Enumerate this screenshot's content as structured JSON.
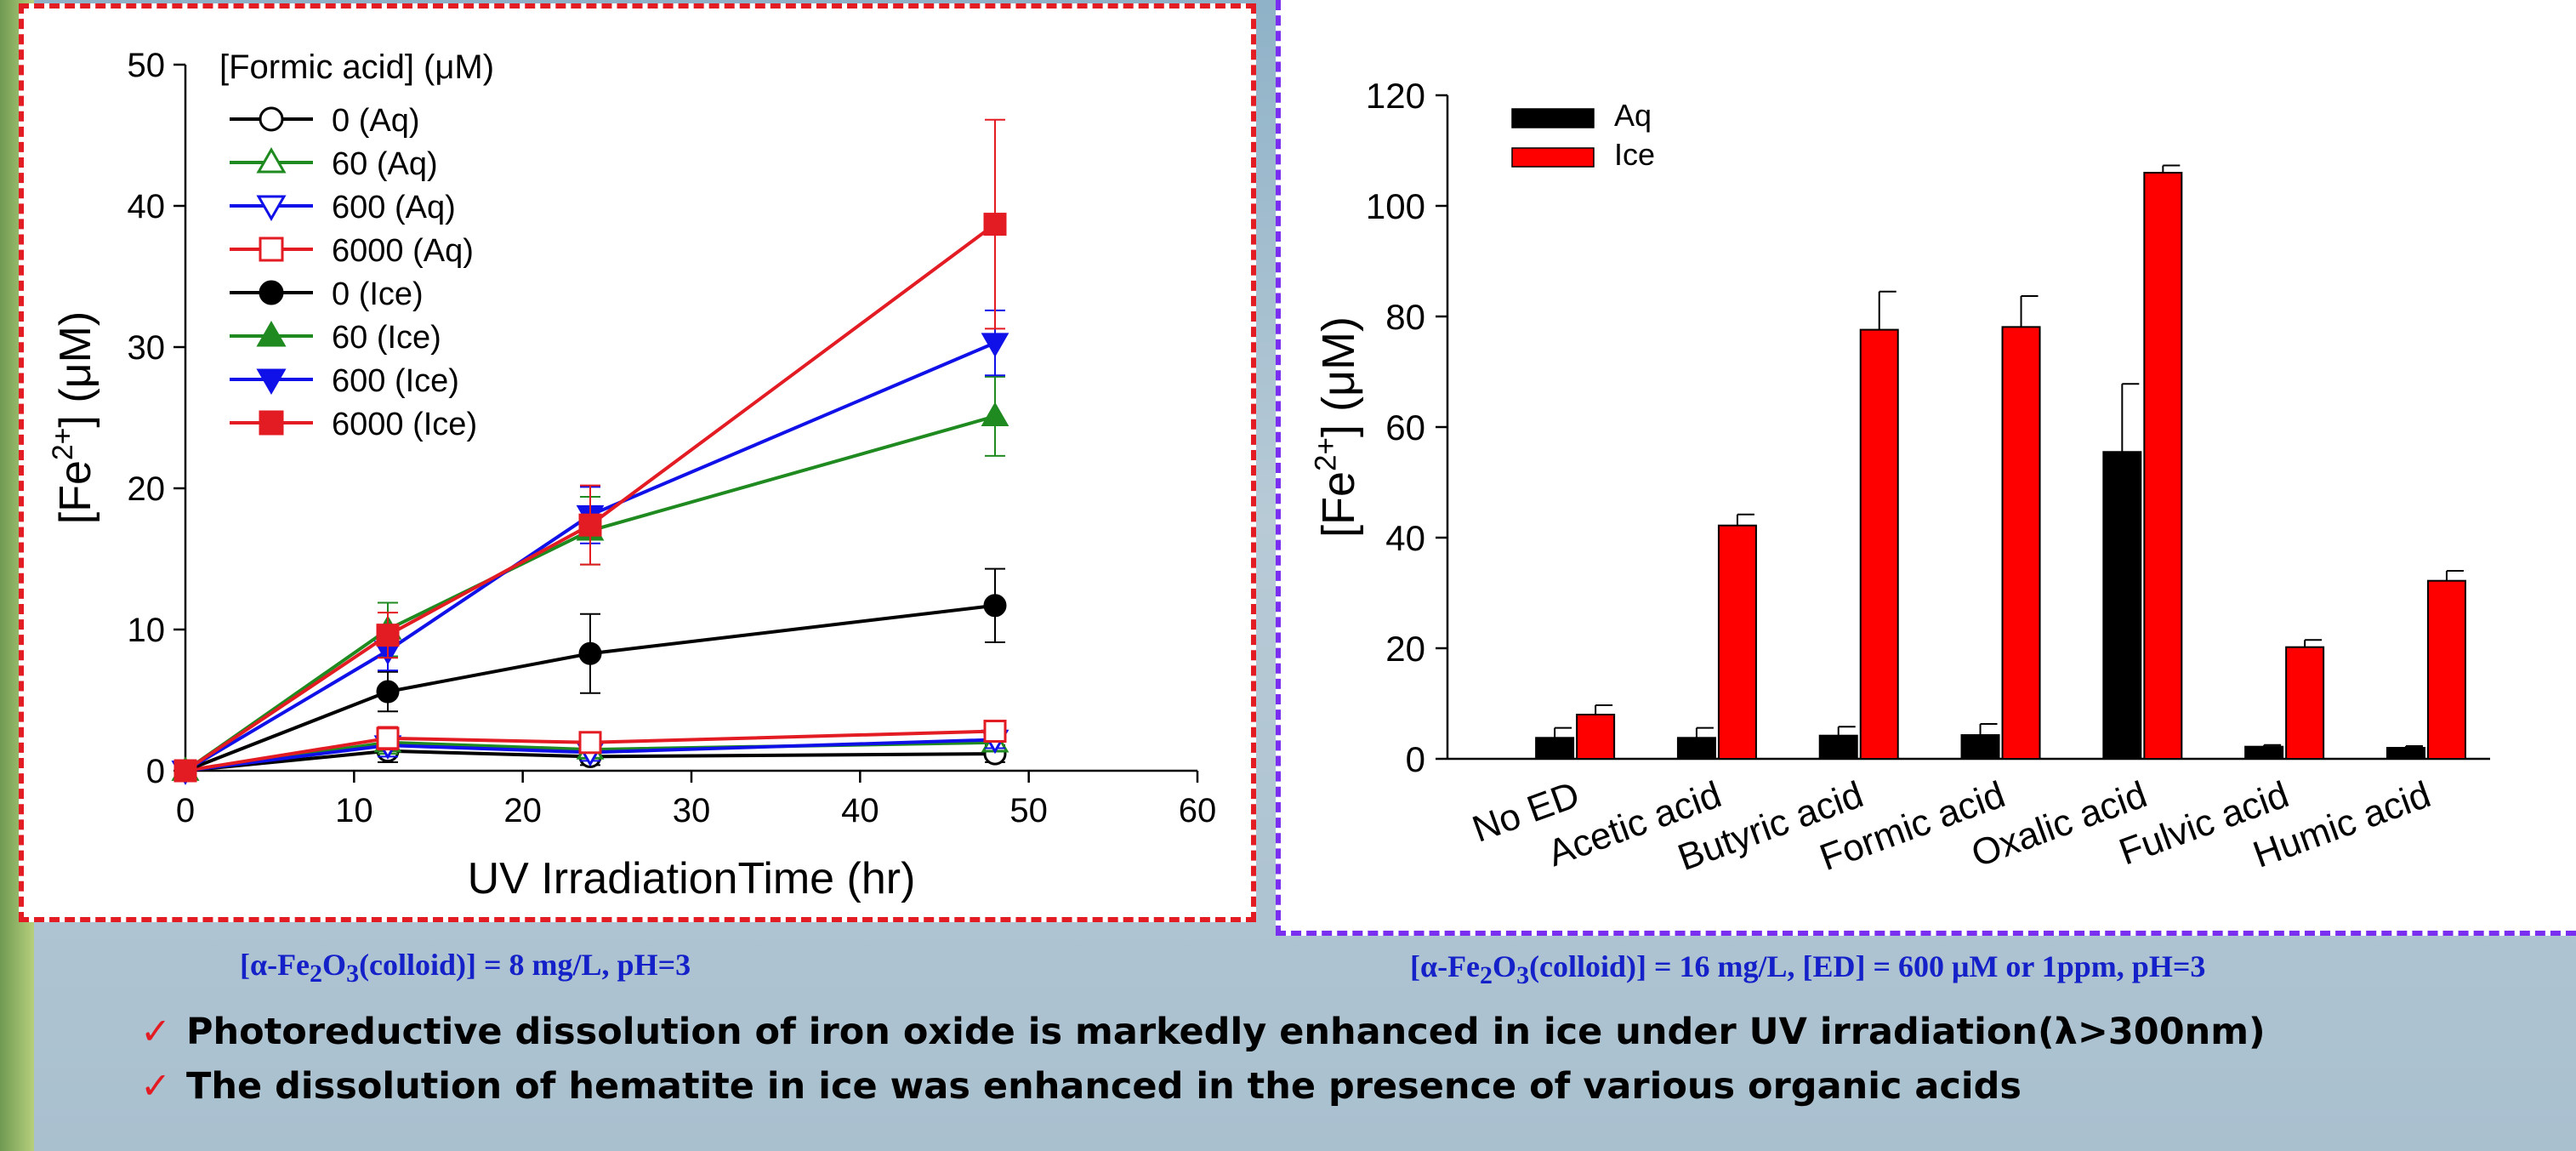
{
  "captions": {
    "left": {
      "pre": "[α-Fe",
      "s1": "2",
      "mid": "O",
      "s2": "3",
      "post": "(colloid)] = 8 mg/L, pH=3"
    },
    "right": {
      "pre": "[α-Fe",
      "s1": "2",
      "mid": "O",
      "s2": "3",
      "post": "(colloid)] = 16 mg/L, [ED] = 600 μM or 1ppm, pH=3"
    }
  },
  "bullets": [
    "Photoreductive dissolution of iron oxide is markedly enhanced in ice under UV irradiation(λ>300nm)",
    "The dissolution of hematite in ice was enhanced in the presence of various organic acids"
  ],
  "chart_data": [
    {
      "type": "line",
      "xlabel": "UV IrradiationTime (hr)",
      "ylabel": "[Fe2+] (μM)",
      "xlim": [
        0,
        60
      ],
      "ylim": [
        0,
        50
      ],
      "xticks": [
        0,
        10,
        20,
        30,
        40,
        50,
        60
      ],
      "yticks": [
        0,
        10,
        20,
        30,
        40,
        50
      ],
      "legend_title": "[Formic acid] (μM)",
      "legend_position": "top-left",
      "x": [
        0,
        12,
        24,
        48
      ],
      "series": [
        {
          "name": "0 (Aq)",
          "color": "#000000",
          "marker": "circle",
          "filled": false,
          "values": [
            0,
            1.4,
            1.0,
            1.2
          ],
          "err": [
            0,
            0.8,
            0.6,
            0.6
          ]
        },
        {
          "name": "60 (Aq)",
          "color": "#1f8a1f",
          "marker": "triangle-up",
          "filled": false,
          "values": [
            0,
            2.0,
            1.5,
            2.0
          ],
          "err": [
            0,
            0.8,
            0.6,
            0.6
          ]
        },
        {
          "name": "600 (Aq)",
          "color": "#1010e8",
          "marker": "triangle-down",
          "filled": false,
          "values": [
            0,
            1.8,
            1.3,
            2.2
          ],
          "err": [
            0,
            0.8,
            0.6,
            0.6
          ]
        },
        {
          "name": "6000 (Aq)",
          "color": "#e31b23",
          "marker": "square",
          "filled": false,
          "values": [
            0,
            2.3,
            2.0,
            2.8
          ],
          "err": [
            0,
            0.8,
            0.6,
            0.6
          ]
        },
        {
          "name": "0 (Ice)",
          "color": "#000000",
          "marker": "circle",
          "filled": true,
          "values": [
            0,
            5.6,
            8.3,
            11.7
          ],
          "err": [
            0,
            1.4,
            2.8,
            2.6
          ]
        },
        {
          "name": "60 (Ice)",
          "color": "#1f8a1f",
          "marker": "triangle-up",
          "filled": true,
          "values": [
            0,
            10.0,
            17.0,
            25.1
          ],
          "err": [
            0,
            1.9,
            2.4,
            2.8
          ]
        },
        {
          "name": "600 (Ice)",
          "color": "#1010e8",
          "marker": "triangle-down",
          "filled": true,
          "values": [
            0,
            8.5,
            18.1,
            30.3
          ],
          "err": [
            0,
            1.4,
            2.0,
            2.3
          ]
        },
        {
          "name": "6000 (Ice)",
          "color": "#e31b23",
          "marker": "square",
          "filled": true,
          "values": [
            0,
            9.6,
            17.4,
            38.7
          ],
          "err": [
            0,
            1.6,
            2.8,
            7.4
          ]
        }
      ]
    },
    {
      "type": "bar",
      "ylabel": "[Fe2+] (μM)",
      "ylim": [
        0,
        120
      ],
      "yticks": [
        0,
        20,
        40,
        60,
        80,
        100,
        120
      ],
      "legend_position": "top-left",
      "categories": [
        "No ED",
        "Acetic acid",
        "Butyric acid",
        "Formic acid",
        "Oxalic acid",
        "Fulvic acid",
        "Humic acid"
      ],
      "series": [
        {
          "name": "Aq",
          "color": "#000000",
          "values": [
            3.8,
            3.8,
            4.2,
            4.3,
            55.5,
            2.2,
            2.0
          ],
          "err": [
            1.8,
            1.8,
            1.6,
            2.0,
            12.3,
            0.3,
            0.3
          ]
        },
        {
          "name": "Ice",
          "color": "#ff0000",
          "values": [
            8.0,
            42.2,
            77.6,
            78.1,
            106.0,
            20.2,
            32.2
          ],
          "err": [
            1.7,
            2.0,
            6.9,
            5.6,
            1.3,
            1.3,
            1.8
          ]
        }
      ]
    }
  ]
}
